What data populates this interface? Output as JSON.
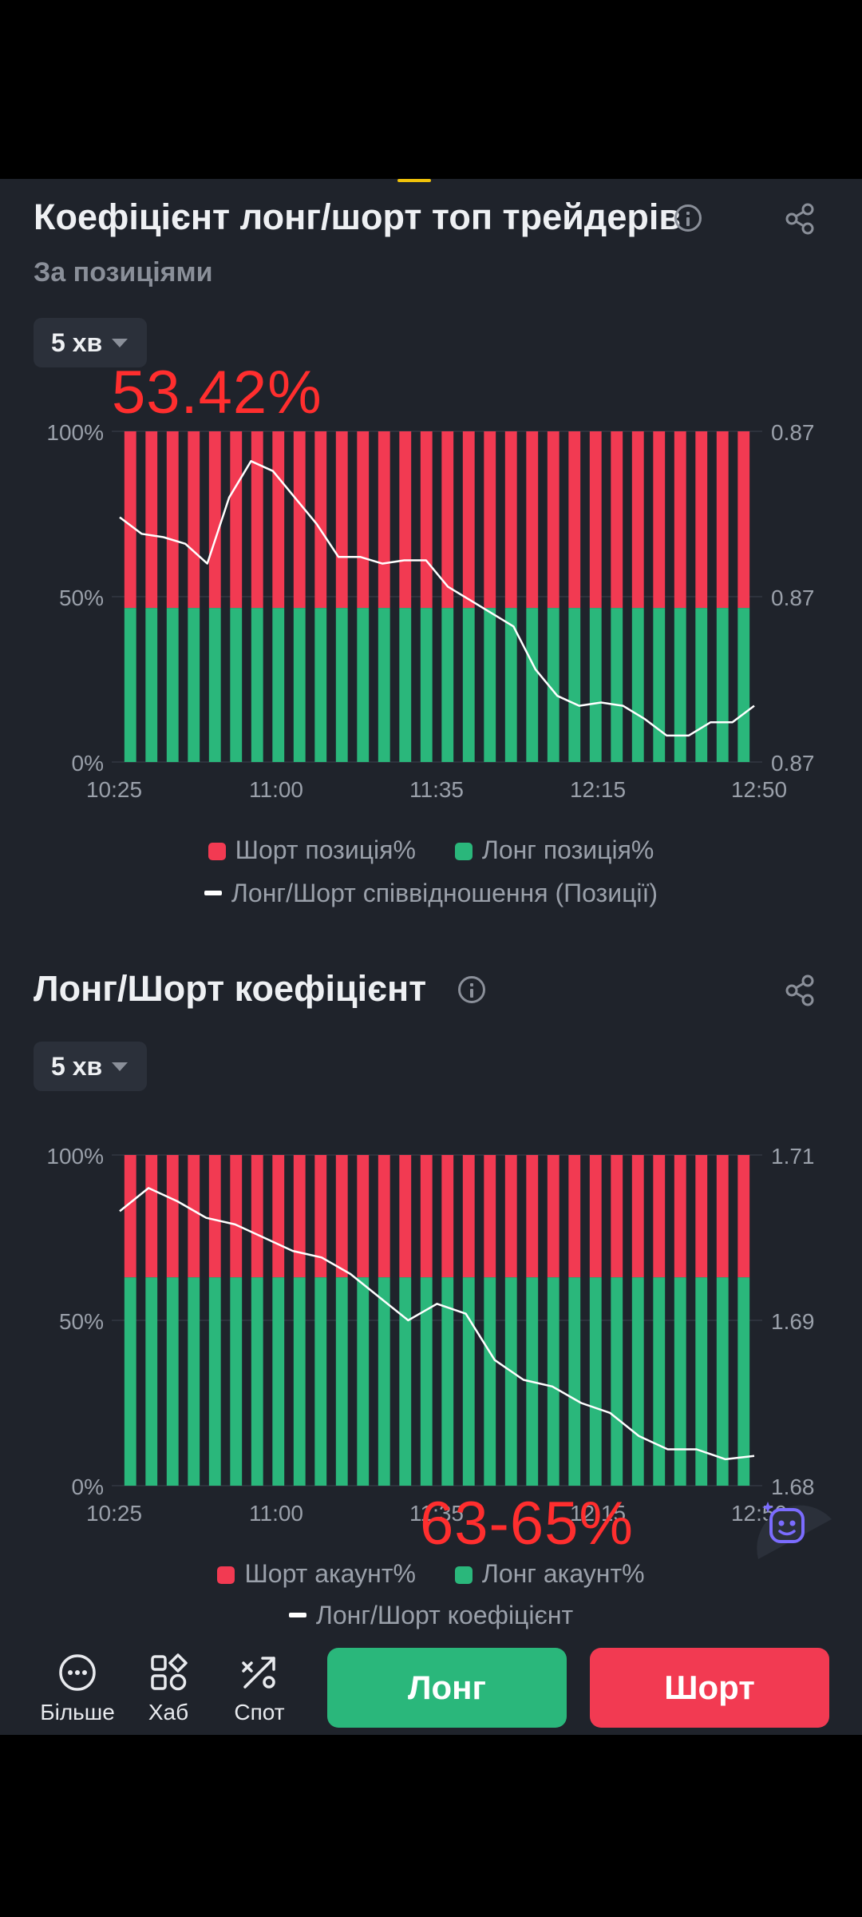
{
  "section1": {
    "title": "Коефіцієнт лонг/шорт топ трейдерів",
    "subtitle": "За позиціями",
    "interval": "5 хв",
    "overlay_text": "53.42%",
    "legend": {
      "short": "Шорт позиція%",
      "long": "Лонг позиція%",
      "ratio": "Лонг/Шорт співвідношення (Позиції)"
    }
  },
  "section2": {
    "title": "Лонг/Шорт коефіцієнт",
    "interval": "5 хв",
    "overlay_text": "63-65%",
    "legend": {
      "short": "Шорт акаунт%",
      "long": "Лонг акаунт%",
      "ratio": "Лонг/Шорт коефіцієнт"
    }
  },
  "colors": {
    "short": "#f23a52",
    "long": "#2ab77b",
    "ratio_line": "#ffffff",
    "background": "#1f232b",
    "overlay": "#ff2e2e"
  },
  "chart_data": [
    {
      "type": "bar",
      "stacked": true,
      "x_ticks": [
        "10:25",
        "11:00",
        "11:35",
        "12:15",
        "12:50"
      ],
      "y_left_ticks": [
        "100%",
        "50%",
        "0%"
      ],
      "y_right_ticks": [
        "0.87",
        "0.87",
        "0.87"
      ],
      "series": [
        {
          "name": "Лонг позиція%",
          "value_percent": 46.58,
          "bars": 30
        },
        {
          "name": "Шорт позиція%",
          "value_percent": 53.42,
          "bars": 30
        }
      ],
      "ratio_line_relative": [
        0.74,
        0.69,
        0.68,
        0.66,
        0.6,
        0.8,
        0.91,
        0.88,
        0.8,
        0.72,
        0.62,
        0.62,
        0.6,
        0.61,
        0.61,
        0.53,
        0.49,
        0.45,
        0.41,
        0.28,
        0.2,
        0.17,
        0.18,
        0.17,
        0.13,
        0.08,
        0.08,
        0.12,
        0.12,
        0.17
      ]
    },
    {
      "type": "bar",
      "stacked": true,
      "x_ticks": [
        "10:25",
        "11:00",
        "11:35",
        "12:15",
        "12:50"
      ],
      "y_left_ticks": [
        "100%",
        "50%",
        "0%"
      ],
      "y_right_ticks": [
        "1.71",
        "1.69",
        "1.68"
      ],
      "series": [
        {
          "name": "Лонг акаунт%",
          "value_percent": 63,
          "bars": 30
        },
        {
          "name": "Шорт акаунт%",
          "value_percent": 37,
          "bars": 30
        }
      ],
      "ratio_line_relative": [
        0.83,
        0.9,
        0.86,
        0.81,
        0.79,
        0.75,
        0.71,
        0.69,
        0.64,
        0.57,
        0.5,
        0.55,
        0.52,
        0.38,
        0.32,
        0.3,
        0.25,
        0.22,
        0.15,
        0.11,
        0.11,
        0.08,
        0.09
      ]
    }
  ],
  "bottom_nav": {
    "more": "Більше",
    "hub": "Хаб",
    "spot": "Спот",
    "long_button": "Лонг",
    "short_button": "Шорт"
  }
}
